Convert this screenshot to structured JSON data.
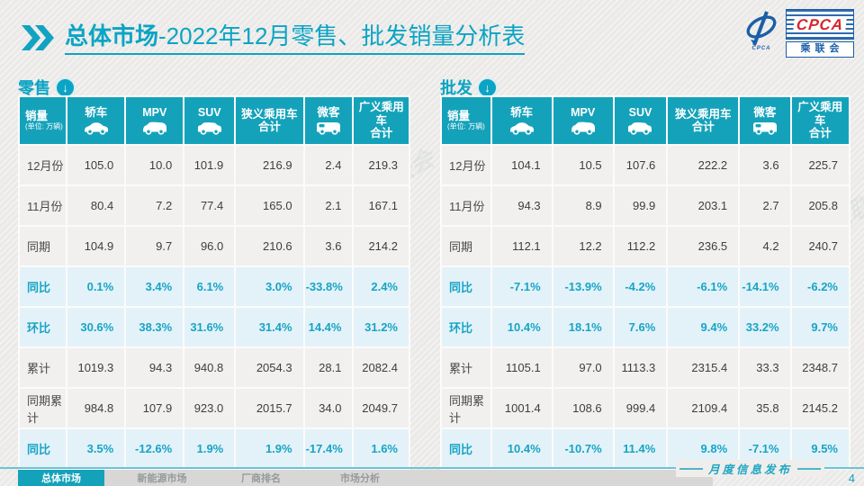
{
  "slide": {
    "title": {
      "highlight": "总体市场",
      "rest": "-2022年12月零售、批发销量分析表"
    },
    "page_number": "4",
    "watermark": "CPCA 乘联会",
    "logo": {
      "text_main": "CPCA",
      "text_sub": "乘联会",
      "text_small": "CPCA"
    },
    "footer": {
      "release_note": "月度信息发布",
      "tabs": [
        {
          "label": "总体市场",
          "active": true
        },
        {
          "label": "新能源市场",
          "active": false
        },
        {
          "label": "厂商排名",
          "active": false
        },
        {
          "label": "市场分析",
          "active": false
        }
      ]
    }
  },
  "columns": [
    {
      "line1": "销量",
      "line2": "(单位: 万辆)",
      "icon": null
    },
    {
      "line1": "轿车",
      "line2": null,
      "icon": "sedan-icon"
    },
    {
      "line1": "MPV",
      "line2": null,
      "icon": "mpv-icon"
    },
    {
      "line1": "SUV",
      "line2": null,
      "icon": "suv-icon"
    },
    {
      "line1": "狭义乘用车",
      "line2": "合计",
      "icon": null
    },
    {
      "line1": "微客",
      "line2": null,
      "icon": "microvan-icon"
    },
    {
      "line1": "广义乘用车",
      "line2": "合计",
      "icon": null
    }
  ],
  "tables": [
    {
      "id": "retail",
      "section_label": "零售",
      "rows": [
        {
          "label": "12月份",
          "type": "normal",
          "values": [
            "105.0",
            "10.0",
            "101.9",
            "216.9",
            "2.4",
            "219.3"
          ]
        },
        {
          "label": "11月份",
          "type": "normal",
          "values": [
            "80.4",
            "7.2",
            "77.4",
            "165.0",
            "2.1",
            "167.1"
          ]
        },
        {
          "label": "同期",
          "type": "normal",
          "values": [
            "104.9",
            "9.7",
            "96.0",
            "210.6",
            "3.6",
            "214.2"
          ]
        },
        {
          "label": "同比",
          "type": "highlight",
          "values": [
            "0.1%",
            "3.4%",
            "6.1%",
            "3.0%",
            "-33.8%",
            "2.4%"
          ]
        },
        {
          "label": "环比",
          "type": "highlight",
          "values": [
            "30.6%",
            "38.3%",
            "31.6%",
            "31.4%",
            "14.4%",
            "31.2%"
          ]
        },
        {
          "label": "累计",
          "type": "normal",
          "values": [
            "1019.3",
            "94.3",
            "940.8",
            "2054.3",
            "28.1",
            "2082.4"
          ]
        },
        {
          "label": "同期累计",
          "type": "normal",
          "values": [
            "984.8",
            "107.9",
            "923.0",
            "2015.7",
            "34.0",
            "2049.7"
          ]
        },
        {
          "label": "同比",
          "type": "highlight",
          "values": [
            "3.5%",
            "-12.6%",
            "1.9%",
            "1.9%",
            "-17.4%",
            "1.6%"
          ]
        }
      ]
    },
    {
      "id": "wholesale",
      "section_label": "批发",
      "rows": [
        {
          "label": "12月份",
          "type": "normal",
          "values": [
            "104.1",
            "10.5",
            "107.6",
            "222.2",
            "3.6",
            "225.7"
          ]
        },
        {
          "label": "11月份",
          "type": "normal",
          "values": [
            "94.3",
            "8.9",
            "99.9",
            "203.1",
            "2.7",
            "205.8"
          ]
        },
        {
          "label": "同期",
          "type": "normal",
          "values": [
            "112.1",
            "12.2",
            "112.2",
            "236.5",
            "4.2",
            "240.7"
          ]
        },
        {
          "label": "同比",
          "type": "highlight",
          "values": [
            "-7.1%",
            "-13.9%",
            "-4.2%",
            "-6.1%",
            "-14.1%",
            "-6.2%"
          ]
        },
        {
          "label": "环比",
          "type": "highlight",
          "values": [
            "10.4%",
            "18.1%",
            "7.6%",
            "9.4%",
            "33.2%",
            "9.7%"
          ]
        },
        {
          "label": "累计",
          "type": "normal",
          "values": [
            "1105.1",
            "97.0",
            "1113.3",
            "2315.4",
            "33.3",
            "2348.7"
          ]
        },
        {
          "label": "同期累计",
          "type": "normal",
          "values": [
            "1001.4",
            "108.6",
            "999.4",
            "2109.4",
            "35.8",
            "2145.2"
          ]
        },
        {
          "label": "同比",
          "type": "highlight",
          "values": [
            "10.4%",
            "-10.7%",
            "11.4%",
            "9.8%",
            "-7.1%",
            "9.5%"
          ]
        }
      ]
    }
  ]
}
